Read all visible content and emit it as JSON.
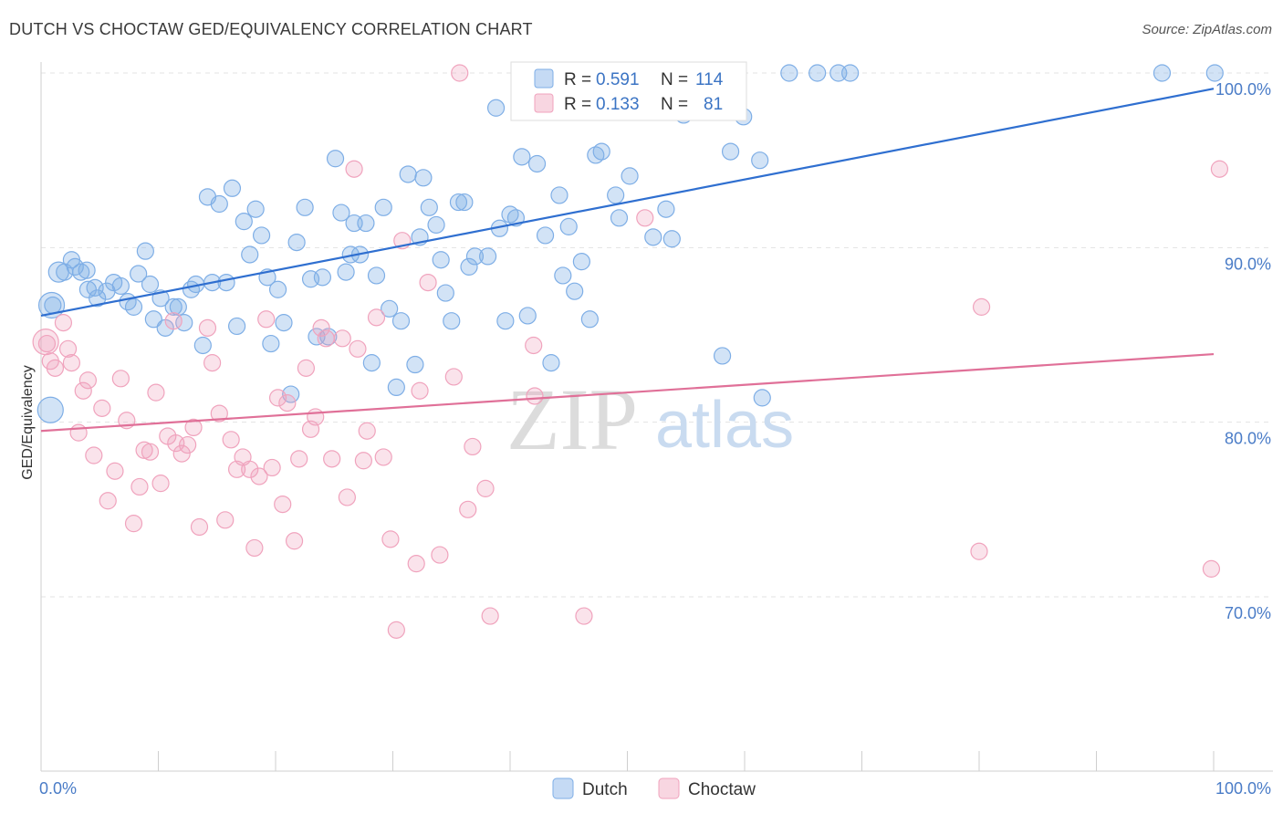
{
  "header": {
    "title": "DUTCH VS CHOCTAW GED/EQUIVALENCY CORRELATION CHART",
    "source": "Source: ZipAtlas.com"
  },
  "watermark": {
    "zip": "ZIP",
    "atlas": "atlas"
  },
  "chart_data": {
    "type": "scatter",
    "xlabel": "",
    "ylabel": "GED/Equivalency",
    "xlim": [
      0,
      100
    ],
    "ylim": [
      60,
      101.5
    ],
    "x_ticks": [
      {
        "value": 0,
        "label": "0.0%"
      },
      {
        "value": 100,
        "label": "100.0%"
      }
    ],
    "y_ticks": [
      {
        "value": 70,
        "label": "70.0%"
      },
      {
        "value": 80,
        "label": "80.0%"
      },
      {
        "value": 90,
        "label": "90.0%"
      },
      {
        "value": 100,
        "label": "100.0%"
      }
    ],
    "grid": true,
    "legend_position": "top-center",
    "series": [
      {
        "name": "Dutch",
        "color": "#7eaee6",
        "line_color": "#2f6fd0",
        "R": "0.591",
        "N": "114",
        "trend": [
          [
            0,
            86.1
          ],
          [
            100,
            99.1
          ]
        ],
        "points": [
          [
            1.0,
            86.7
          ],
          [
            2.0,
            88.6
          ],
          [
            2.6,
            89.3
          ],
          [
            2.9,
            88.9
          ],
          [
            3.4,
            88.6
          ],
          [
            3.9,
            88.7
          ],
          [
            4.0,
            87.6
          ],
          [
            4.6,
            87.7
          ],
          [
            4.8,
            87.1
          ],
          [
            5.6,
            87.5
          ],
          [
            6.2,
            88.0
          ],
          [
            6.8,
            87.8
          ],
          [
            7.4,
            86.9
          ],
          [
            7.9,
            86.6
          ],
          [
            8.3,
            88.5
          ],
          [
            8.9,
            89.8
          ],
          [
            9.3,
            87.9
          ],
          [
            9.6,
            85.9
          ],
          [
            10.2,
            87.1
          ],
          [
            10.6,
            85.4
          ],
          [
            11.3,
            86.6
          ],
          [
            11.7,
            86.6
          ],
          [
            12.2,
            85.7
          ],
          [
            12.8,
            87.6
          ],
          [
            13.2,
            87.9
          ],
          [
            13.8,
            84.4
          ],
          [
            14.2,
            92.9
          ],
          [
            14.6,
            88.0
          ],
          [
            15.2,
            92.5
          ],
          [
            15.8,
            88.0
          ],
          [
            16.3,
            93.4
          ],
          [
            16.7,
            85.5
          ],
          [
            17.3,
            91.5
          ],
          [
            17.8,
            89.6
          ],
          [
            18.3,
            92.2
          ],
          [
            18.8,
            90.7
          ],
          [
            19.3,
            88.3
          ],
          [
            19.6,
            84.5
          ],
          [
            20.2,
            87.6
          ],
          [
            20.7,
            85.7
          ],
          [
            21.3,
            81.6
          ],
          [
            21.8,
            90.3
          ],
          [
            22.5,
            92.3
          ],
          [
            23.0,
            88.2
          ],
          [
            23.5,
            84.9
          ],
          [
            24.0,
            88.3
          ],
          [
            24.5,
            84.9
          ],
          [
            25.1,
            95.1
          ],
          [
            25.6,
            92.0
          ],
          [
            26.0,
            88.6
          ],
          [
            26.4,
            89.6
          ],
          [
            26.7,
            91.4
          ],
          [
            27.2,
            89.6
          ],
          [
            27.7,
            91.4
          ],
          [
            28.2,
            83.4
          ],
          [
            28.6,
            88.4
          ],
          [
            29.2,
            92.3
          ],
          [
            29.7,
            86.5
          ],
          [
            30.3,
            82.0
          ],
          [
            30.7,
            85.8
          ],
          [
            31.3,
            94.2
          ],
          [
            31.9,
            83.3
          ],
          [
            32.3,
            90.6
          ],
          [
            32.6,
            94.0
          ],
          [
            33.1,
            92.3
          ],
          [
            33.7,
            91.3
          ],
          [
            34.1,
            89.3
          ],
          [
            34.5,
            87.4
          ],
          [
            35.0,
            85.8
          ],
          [
            35.6,
            92.6
          ],
          [
            36.1,
            92.6
          ],
          [
            36.5,
            88.9
          ],
          [
            37.0,
            89.5
          ],
          [
            38.1,
            89.5
          ],
          [
            38.8,
            98.0
          ],
          [
            39.1,
            91.1
          ],
          [
            39.6,
            85.8
          ],
          [
            40.0,
            91.9
          ],
          [
            40.5,
            91.7
          ],
          [
            41.0,
            95.2
          ],
          [
            41.5,
            86.1
          ],
          [
            42.3,
            94.8
          ],
          [
            43.0,
            90.7
          ],
          [
            43.5,
            83.4
          ],
          [
            44.2,
            93.0
          ],
          [
            44.5,
            88.4
          ],
          [
            45.0,
            91.2
          ],
          [
            45.5,
            87.5
          ],
          [
            46.1,
            89.2
          ],
          [
            46.8,
            85.9
          ],
          [
            47.3,
            95.3
          ],
          [
            47.8,
            95.5
          ],
          [
            49.0,
            93.0
          ],
          [
            49.3,
            91.7
          ],
          [
            50.2,
            94.1
          ],
          [
            52.5,
            100.0
          ],
          [
            52.2,
            90.6
          ],
          [
            53.3,
            92.2
          ],
          [
            53.8,
            90.5
          ],
          [
            54.3,
            100.0
          ],
          [
            54.8,
            97.6
          ],
          [
            55.2,
            98.7
          ],
          [
            57.0,
            100.0
          ],
          [
            58.1,
            83.8
          ],
          [
            58.8,
            95.5
          ],
          [
            59.9,
            97.5
          ],
          [
            61.3,
            95.0
          ],
          [
            61.5,
            81.4
          ],
          [
            63.8,
            100.0
          ],
          [
            66.2,
            100.0
          ],
          [
            68.0,
            100.0
          ],
          [
            69.0,
            100.0
          ],
          [
            95.6,
            100.0
          ],
          [
            100.1,
            100.0
          ]
        ]
      },
      {
        "name": "Choctaw",
        "color": "#f0a3bd",
        "line_color": "#e07098",
        "R": "0.133",
        "N": "81",
        "trend": [
          [
            0,
            79.5
          ],
          [
            100,
            83.9
          ]
        ],
        "points": [
          [
            0.5,
            84.5
          ],
          [
            0.8,
            83.5
          ],
          [
            1.2,
            83.1
          ],
          [
            1.9,
            85.7
          ],
          [
            2.3,
            84.2
          ],
          [
            2.6,
            83.4
          ],
          [
            3.2,
            79.4
          ],
          [
            3.6,
            81.8
          ],
          [
            4.0,
            82.4
          ],
          [
            4.5,
            78.1
          ],
          [
            5.2,
            80.8
          ],
          [
            5.7,
            75.5
          ],
          [
            6.3,
            77.2
          ],
          [
            6.8,
            82.5
          ],
          [
            7.3,
            80.1
          ],
          [
            7.9,
            74.2
          ],
          [
            8.4,
            76.3
          ],
          [
            8.8,
            78.4
          ],
          [
            9.3,
            78.3
          ],
          [
            9.8,
            81.7
          ],
          [
            10.2,
            76.5
          ],
          [
            10.8,
            79.2
          ],
          [
            11.3,
            85.8
          ],
          [
            11.5,
            78.8
          ],
          [
            12.0,
            78.2
          ],
          [
            12.5,
            78.7
          ],
          [
            13.0,
            79.7
          ],
          [
            13.5,
            74.0
          ],
          [
            14.2,
            85.4
          ],
          [
            14.6,
            83.4
          ],
          [
            15.2,
            80.5
          ],
          [
            15.7,
            74.4
          ],
          [
            16.2,
            79.0
          ],
          [
            16.7,
            77.3
          ],
          [
            17.2,
            78.0
          ],
          [
            17.8,
            77.3
          ],
          [
            18.2,
            72.8
          ],
          [
            18.6,
            76.9
          ],
          [
            19.2,
            85.9
          ],
          [
            19.7,
            77.4
          ],
          [
            20.2,
            81.4
          ],
          [
            20.6,
            75.3
          ],
          [
            21.0,
            81.1
          ],
          [
            21.6,
            73.2
          ],
          [
            22.0,
            77.9
          ],
          [
            22.6,
            83.1
          ],
          [
            23.0,
            79.6
          ],
          [
            23.4,
            80.3
          ],
          [
            23.9,
            85.4
          ],
          [
            24.3,
            84.8
          ],
          [
            24.8,
            77.9
          ],
          [
            25.7,
            84.8
          ],
          [
            26.1,
            75.7
          ],
          [
            26.7,
            94.5
          ],
          [
            27.0,
            84.2
          ],
          [
            27.5,
            77.8
          ],
          [
            27.8,
            79.5
          ],
          [
            28.6,
            86.0
          ],
          [
            29.2,
            78.0
          ],
          [
            29.8,
            73.3
          ],
          [
            30.3,
            68.1
          ],
          [
            30.8,
            90.4
          ],
          [
            32.0,
            71.9
          ],
          [
            32.3,
            81.8
          ],
          [
            33.0,
            88.0
          ],
          [
            34.0,
            72.4
          ],
          [
            35.2,
            82.6
          ],
          [
            35.7,
            100.0
          ],
          [
            36.4,
            75.0
          ],
          [
            36.8,
            78.6
          ],
          [
            37.9,
            76.2
          ],
          [
            38.3,
            68.9
          ],
          [
            42.0,
            84.4
          ],
          [
            42.1,
            81.5
          ],
          [
            46.3,
            68.9
          ],
          [
            51.5,
            91.7
          ],
          [
            58.5,
            100.0
          ],
          [
            80.0,
            72.6
          ],
          [
            80.2,
            86.6
          ],
          [
            100.5,
            94.5
          ],
          [
            99.8,
            71.6
          ]
        ]
      }
    ]
  }
}
